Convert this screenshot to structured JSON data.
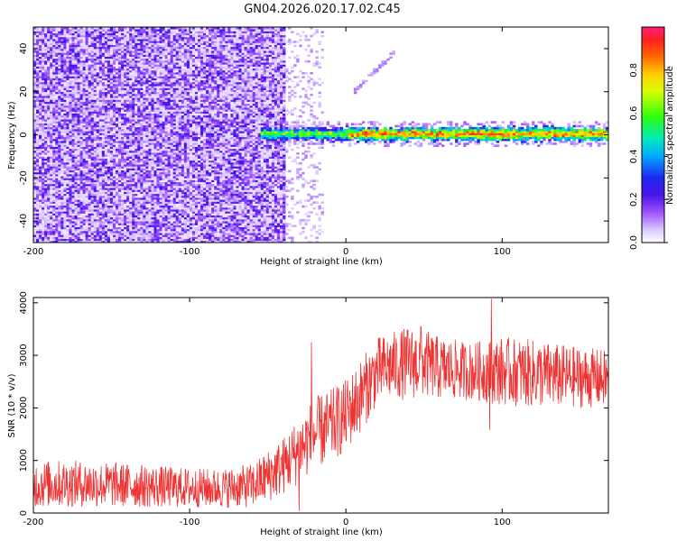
{
  "title": "GN04.2026.020.17.02.C45",
  "chart_data": [
    {
      "type": "heatmap",
      "xlabel": "Height of straight line (km)",
      "ylabel": "Frequency (Hz)",
      "xlim": [
        -200,
        168
      ],
      "ylim": [
        -50,
        50
      ],
      "xticks": [
        -200,
        -100,
        0,
        100
      ],
      "yticks": [
        -40,
        -20,
        0,
        20,
        40
      ],
      "colorbar": {
        "label": "Normalized spectral amplitude",
        "range": [
          0,
          1
        ],
        "ticks": [
          0,
          0.2,
          0.4,
          0.6,
          0.8
        ],
        "tick_labels": [
          "0.0",
          "0.2",
          "0.4",
          "0.6",
          "0.8"
        ],
        "colors": [
          "#ffffff",
          "#b388ff",
          "#7a1fd8",
          "#1d27f2",
          "#00c8ff",
          "#00e676",
          "#33ff00",
          "#ffee00",
          "#ff8800",
          "#ff2d2d",
          "#ff1f7a"
        ]
      },
      "features": {
        "noise_region_x": [
          -200,
          -40
        ],
        "sparse_region_x": [
          -40,
          -15
        ],
        "carrier_start_x": -55,
        "carrier_frequency": 0,
        "carrier_bandwidth": 6,
        "chirp_x": [
          5,
          30
        ],
        "chirp_frequency": [
          20,
          38
        ]
      }
    },
    {
      "type": "line",
      "xlabel": "Height of straight line (km)",
      "ylabel": "SNR (10 * v/v)",
      "xlim": [
        -200,
        168
      ],
      "ylim": [
        0,
        4100
      ],
      "xticks": [
        -200,
        -100,
        0,
        100
      ],
      "yticks": [
        0,
        1000,
        2000,
        3000,
        4000
      ],
      "series": [
        {
          "name": "SNR",
          "color": "#ef3232",
          "x": [
            -200,
            -180,
            -150,
            -120,
            -100,
            -80,
            -60,
            -50,
            -40,
            -30,
            -20,
            -10,
            0,
            10,
            20,
            30,
            40,
            50,
            60,
            80,
            100,
            120,
            140,
            168
          ],
          "mean": [
            550,
            560,
            540,
            500,
            480,
            470,
            520,
            700,
            900,
            1200,
            1500,
            1650,
            1850,
            2250,
            2700,
            2800,
            2850,
            2850,
            2750,
            2700,
            2700,
            2650,
            2600,
            2550
          ],
          "spread": [
            450,
            450,
            430,
            400,
            380,
            370,
            420,
            500,
            550,
            650,
            700,
            700,
            700,
            700,
            650,
            650,
            700,
            650,
            600,
            550,
            650,
            650,
            600,
            550
          ],
          "spikes": [
            {
              "x": -22,
              "y": 3250
            },
            {
              "x": -30,
              "y": 40
            },
            {
              "x": 93,
              "y": 4080
            },
            {
              "x": 48,
              "y": 3550
            },
            {
              "x": 92,
              "y": 1580
            }
          ]
        }
      ]
    }
  ]
}
